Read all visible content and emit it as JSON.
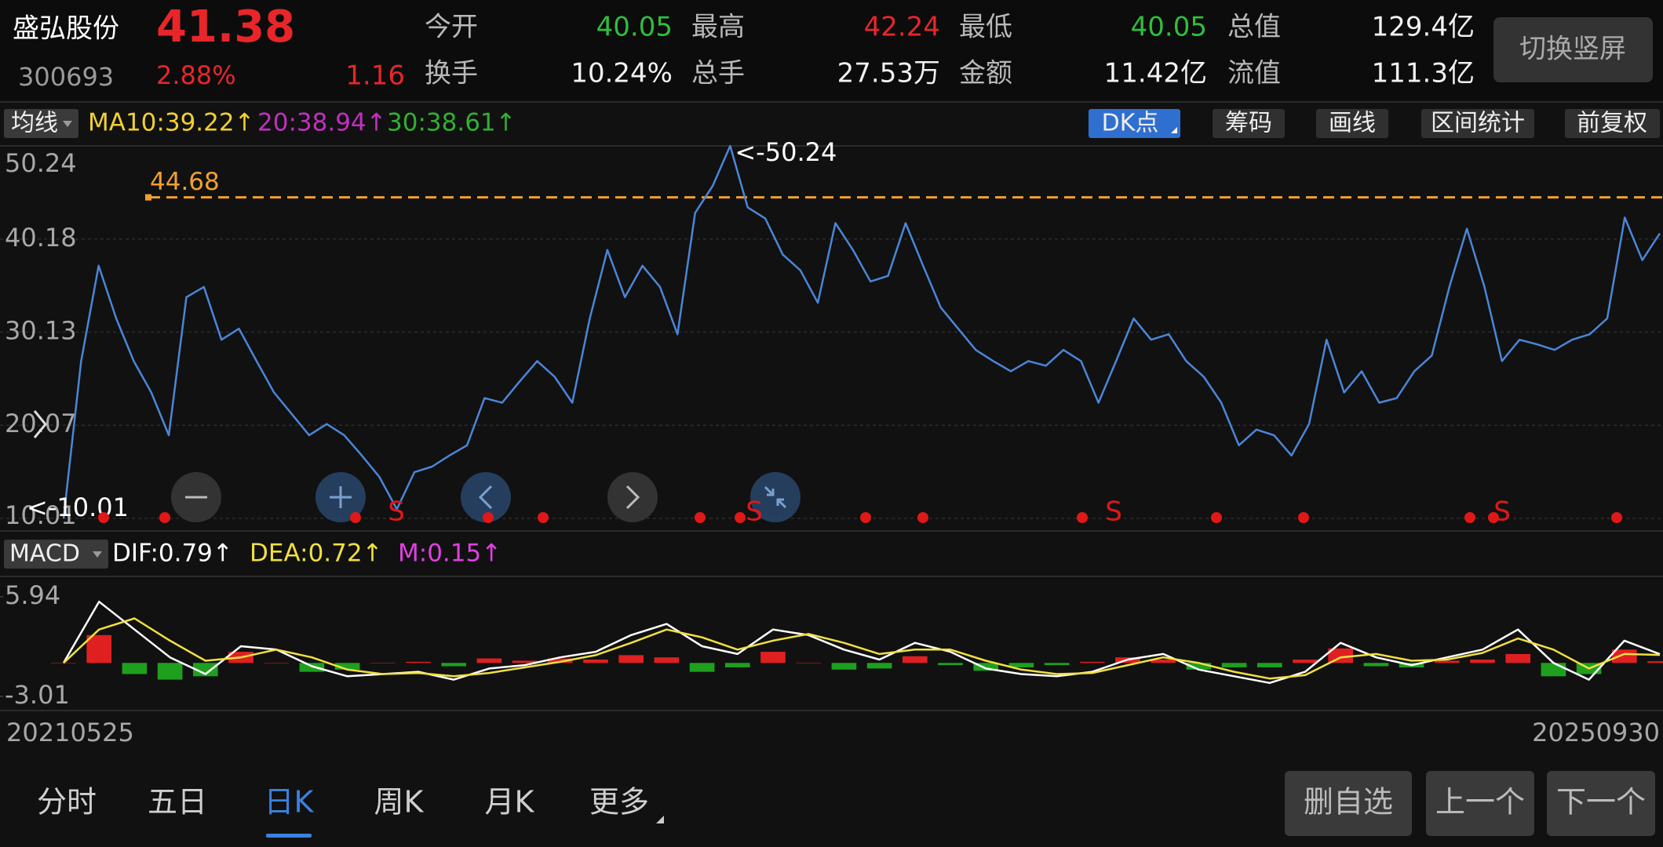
{
  "header": {
    "name": "盛弘股份",
    "price": "41.38",
    "code": "300693",
    "change_pct": "2.88%",
    "change": "1.16",
    "fields": [
      {
        "label": "今开",
        "value": "40.05"
      },
      {
        "label": "最高",
        "value": "42.24"
      },
      {
        "label": "最低",
        "value": "40.05"
      },
      {
        "label": "总值",
        "value": "129.4亿"
      },
      {
        "label": "换手",
        "value": "10.24%"
      },
      {
        "label": "总手",
        "value": "27.53万"
      },
      {
        "label": "金额",
        "value": "11.42亿"
      },
      {
        "label": "流值",
        "value": "111.3亿"
      }
    ],
    "button": "切换竖屏"
  },
  "toolbar": {
    "indicator": "均线",
    "ma10": "MA10:39.22↑",
    "ma20": "20:38.94↑",
    "ma30": "30:38.61↑",
    "buttons": [
      "DK点",
      "筹码",
      "画线",
      "区间统计",
      "前复权"
    ],
    "sub_indicator": "MACD",
    "dif": "DIF:0.79↑",
    "dea": "DEA:0.72↑",
    "m": "M:0.15↑"
  },
  "chart_data": [
    {
      "type": "line",
      "categories": [
        "20210525",
        null,
        null,
        null,
        null,
        null,
        null,
        null,
        null,
        null,
        null,
        null,
        null,
        null,
        null,
        null,
        null,
        null,
        null,
        null,
        null,
        null,
        null,
        null,
        null,
        null,
        null,
        null,
        null,
        null,
        null,
        null,
        null,
        null,
        null,
        null,
        null,
        null,
        null,
        null,
        null,
        null,
        null,
        null,
        null,
        null,
        null,
        null,
        null,
        null,
        null,
        null,
        null,
        null,
        null,
        null,
        null,
        null,
        null,
        null,
        null,
        null,
        null,
        null,
        null,
        null,
        null,
        null,
        null,
        null,
        null,
        null,
        null,
        null,
        null,
        null,
        null,
        null,
        null,
        null,
        null,
        null,
        null,
        null,
        null,
        null,
        null,
        null,
        null,
        null,
        null,
        "20250930"
      ],
      "series": [
        {
          "color": "#4a86d8",
          "values": [
            10.01,
            27.0,
            37.3,
            31.6,
            27.0,
            23.6,
            19.0,
            33.9,
            35.0,
            29.3,
            30.5,
            27.0,
            23.6,
            21.3,
            19.0,
            20.2,
            19.0,
            16.8,
            14.5,
            11.0,
            15.0,
            15.6,
            16.8,
            17.9,
            23.0,
            22.5,
            24.8,
            27.0,
            25.3,
            22.5,
            31.6,
            39.0,
            33.9,
            37.3,
            35.0,
            29.9,
            43.0,
            45.9,
            50.24,
            43.6,
            42.4,
            38.5,
            36.8,
            33.3,
            41.9,
            39.0,
            35.6,
            36.2,
            41.9,
            37.3,
            32.8,
            30.5,
            28.2,
            27.0,
            25.9,
            27.0,
            26.5,
            28.2,
            27.0,
            22.5,
            27.0,
            31.6,
            29.3,
            29.9,
            27.0,
            25.3,
            22.5,
            17.9,
            19.6,
            19.0,
            16.8,
            20.2,
            29.3,
            23.6,
            25.9,
            22.5,
            23.0,
            25.9,
            27.6,
            35.0,
            41.3,
            35.0,
            27.0,
            29.3,
            28.8,
            28.2,
            29.3,
            29.9,
            31.6,
            42.5,
            37.9,
            40.8
          ]
        }
      ],
      "ylim": [
        10.01,
        50.24
      ],
      "yticks": [
        10.01,
        20.07,
        30.13,
        40.18,
        50.24
      ],
      "grid": true,
      "ref_line": 44.68,
      "ref_color": "#f0a030",
      "max_label": "<-50.24",
      "min_label": "<-10.01",
      "signal": "S"
    },
    {
      "type": "macd",
      "series": [
        {
          "color": "#ffffff",
          "values": [
            0.0,
            5.5,
            3.0,
            0.5,
            -1.0,
            1.5,
            1.2,
            -0.3,
            -1.2,
            -1.0,
            -0.8,
            -1.5,
            -0.5,
            -0.2,
            0.5,
            1.0,
            2.5,
            3.5,
            1.5,
            0.8,
            3.0,
            2.5,
            1.2,
            0.3,
            1.8,
            1.0,
            -0.5,
            -1.0,
            -1.2,
            -0.8,
            0.3,
            0.8,
            -0.6,
            -1.2,
            -1.8,
            -0.8,
            1.8,
            0.5,
            -0.2,
            0.5,
            1.2,
            3.0,
            0.0,
            -1.5,
            2.0,
            0.79
          ]
        },
        {
          "color": "#f0e040",
          "values": [
            0.0,
            3.0,
            4.0,
            2.0,
            0.2,
            0.5,
            1.2,
            0.5,
            -0.6,
            -1.0,
            -0.9,
            -1.2,
            -0.9,
            -0.4,
            0.1,
            0.7,
            1.8,
            3.0,
            2.3,
            1.2,
            2.0,
            2.6,
            1.8,
            0.8,
            1.2,
            1.2,
            0.2,
            -0.6,
            -1.0,
            -0.9,
            -0.2,
            0.5,
            0.0,
            -0.8,
            -1.4,
            -1.1,
            0.5,
            0.8,
            0.2,
            0.3,
            0.9,
            2.2,
            1.2,
            -0.5,
            0.8,
            0.72
          ]
        },
        {
          "kind": "histogram",
          "up_color": "#e02020",
          "down_color": "#1ea01e",
          "values": [
            0,
            2.5,
            -1.0,
            -1.5,
            -1.2,
            1.0,
            0,
            -0.8,
            -0.6,
            0,
            0.1,
            -0.3,
            0.4,
            0.2,
            0.4,
            0.3,
            0.7,
            0.5,
            -0.8,
            -0.4,
            1.0,
            0,
            -0.6,
            -0.5,
            0.6,
            -0.2,
            -0.7,
            -0.4,
            -0.2,
            0.1,
            0.5,
            0.3,
            -0.6,
            -0.4,
            -0.4,
            0.3,
            1.3,
            -0.3,
            -0.4,
            0.2,
            0.3,
            0.8,
            -1.2,
            -1.0,
            1.2,
            0.15
          ]
        }
      ],
      "ylim": [
        -3.01,
        5.94
      ],
      "yticks": [
        -3.01,
        5.94
      ]
    }
  ],
  "footer": {
    "tabs": [
      "分时",
      "五日",
      "日K",
      "周K",
      "月K",
      "更多"
    ],
    "buttons": [
      "删自选",
      "上一个",
      "下一个"
    ]
  }
}
